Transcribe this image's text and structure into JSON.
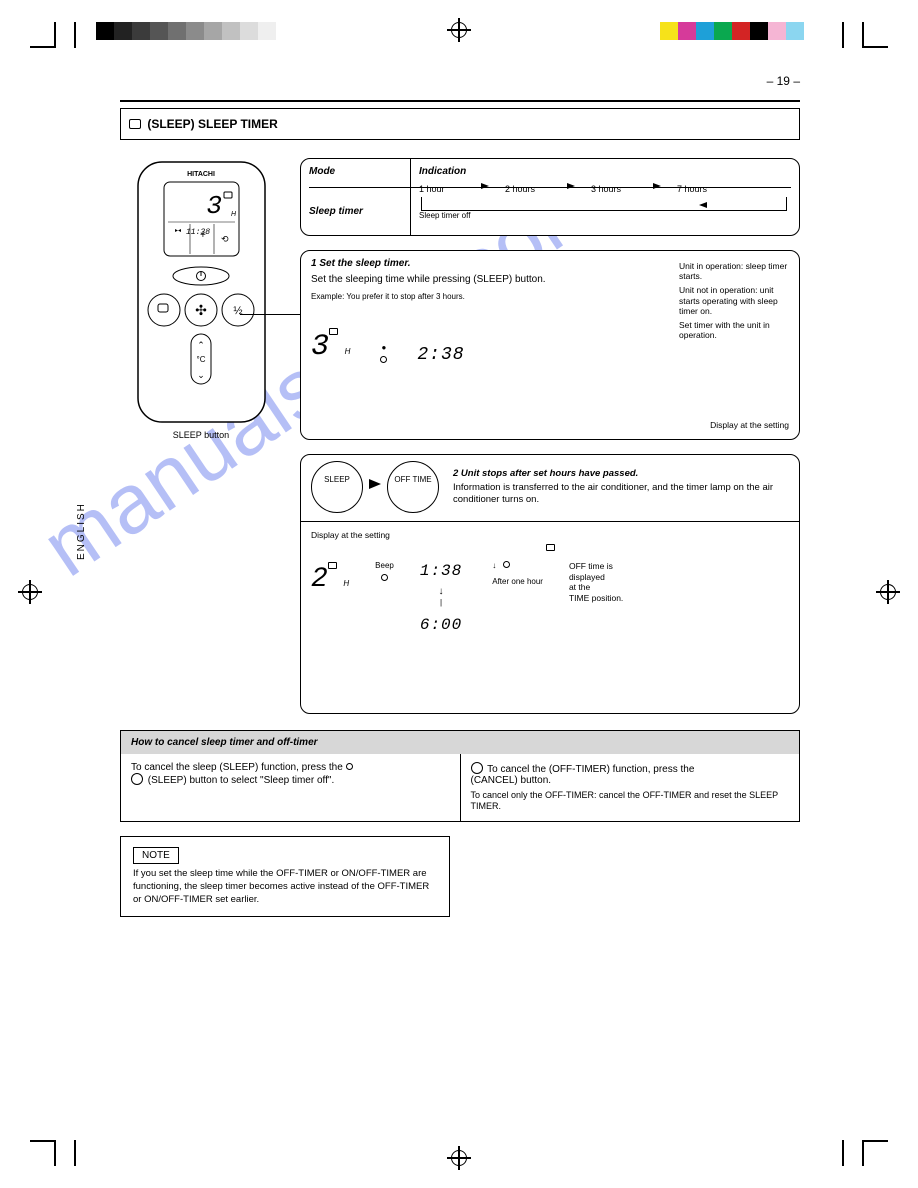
{
  "page_number": "– 19 –",
  "language_tab": "ENGLISH",
  "title_box": "(SLEEP) SLEEP TIMER",
  "box1": {
    "left_label": "Mode",
    "right_label": "Indication",
    "seq_values": [
      "1 hour",
      "2 hours",
      "3 hours",
      "7 hours"
    ],
    "seq_label": "Sleep timer",
    "off_label": "Sleep timer off"
  },
  "box2": {
    "title": "1  Set the sleep timer.",
    "para1": "Set the sleeping time while pressing (SLEEP) button.",
    "example_label": "Example: You prefer it to stop after 3 hours.",
    "hours_value": "3",
    "hours_unit": "H",
    "time_value": "2:38",
    "note_lines": [
      "Unit in operation: sleep timer starts.",
      "Unit not in operation: unit starts operating with sleep timer on.",
      "Set timer with the unit in operation."
    ],
    "right_label": "Display at the setting"
  },
  "box3": {
    "title": "2  Unit stops after set hours have passed.",
    "circle1": "SLEEP",
    "circle2": "OFF TIME",
    "para": "Information is transferred to the air conditioner, and the timer lamp on the air conditioner turns on.",
    "divider_note": "",
    "disp_title": "Display at the setting",
    "hours_value": "2",
    "hours_unit": "H",
    "time_value": "1:38",
    "off_label": "OFF time",
    "off_time": "6:00",
    "beep": "Beep",
    "one_hr": "After one hour",
    "right_labels": [
      "OFF time is",
      "displayed",
      "at the",
      "TIME position."
    ]
  },
  "off_timer": {
    "heading": "How to cancel sleep timer and off-timer",
    "left": {
      "line1": "To cancel the sleep (SLEEP) function, press the",
      "line2": "(SLEEP) button to select \"Sleep timer off\".",
      "sub": ""
    },
    "right": {
      "line1": "To cancel the (OFF-TIMER) function, press the",
      "line2": "(CANCEL) button.",
      "sub": "To cancel only the OFF-TIMER: cancel the OFF-TIMER and reset the SLEEP TIMER."
    }
  },
  "note": {
    "label": "NOTE",
    "body": "If you set the sleep time while the OFF-TIMER or ON/OFF-TIMER are functioning, the sleep timer becomes active instead of the OFF-TIMER or ON/OFF-TIMER set earlier."
  },
  "remote": {
    "brand": "HITACHI",
    "display_hours": "3",
    "display_h": "H",
    "display_time": "11:38",
    "button_sleep": "SLEEP",
    "callout": "SLEEP button"
  },
  "watermark_text": "manualshive.com",
  "swatches": {
    "gray_colors": [
      "#000000",
      "#222222",
      "#3b3b3b",
      "#555555",
      "#707070",
      "#8b8b8b",
      "#a6a6a6",
      "#c1c1c1",
      "#dcdcdc",
      "#efefef",
      "#ffffff"
    ],
    "cmyk_colors": [
      "#f6e21a",
      "#d63a9a",
      "#1ea0d8",
      "#0aa84f",
      "#d32424",
      "#000000",
      "#f5b5d4",
      "#8bd6f0",
      "#ffffff"
    ]
  }
}
